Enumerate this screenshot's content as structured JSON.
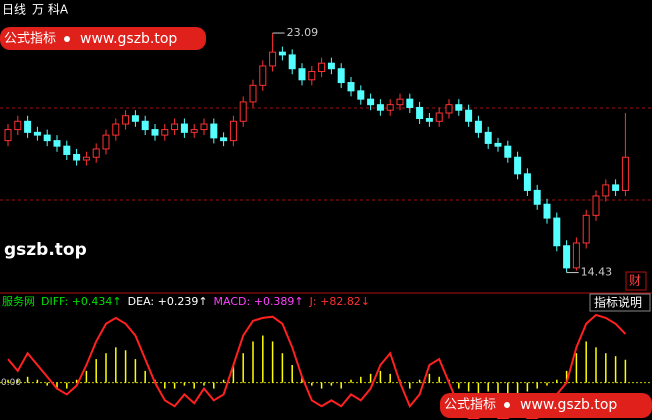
{
  "header": {
    "period": "日线",
    "stock": "万 科A"
  },
  "watermark": {
    "badge": "公式指标",
    "url": "www.gszb.top",
    "site": "gszb.top"
  },
  "button": "指标说明",
  "finance_tab": "财",
  "chart_data": [
    {
      "type": "candlestick",
      "ylim": [
        13.8,
        23.2
      ],
      "up_color": "#ff3232",
      "down_color": "#54ffff",
      "open": [
        19.2,
        19.6,
        19.9,
        19.5,
        19.4,
        19.2,
        19.0,
        18.7,
        18.5,
        18.6,
        18.9,
        19.4,
        19.8,
        20.1,
        19.9,
        19.6,
        19.4,
        19.6,
        19.8,
        19.5,
        19.6,
        19.8,
        19.3,
        19.2,
        19.9,
        20.6,
        21.2,
        21.9,
        22.4,
        22.3,
        21.8,
        21.4,
        21.7,
        22.0,
        21.8,
        21.3,
        21.0,
        20.7,
        20.5,
        20.3,
        20.5,
        20.7,
        20.4,
        20.0,
        19.9,
        20.2,
        20.5,
        20.3,
        19.9,
        19.5,
        19.1,
        19.0,
        18.6,
        18.0,
        17.4,
        16.9,
        16.4,
        15.4,
        14.6,
        15.5,
        16.5,
        17.2,
        17.6,
        17.4
      ],
      "high": [
        19.8,
        20.1,
        20.1,
        19.7,
        19.6,
        19.4,
        19.2,
        18.9,
        18.8,
        19.1,
        19.6,
        20.0,
        20.3,
        20.3,
        20.1,
        19.8,
        19.8,
        20.0,
        20.0,
        19.8,
        20.0,
        20.0,
        19.5,
        20.1,
        20.8,
        21.4,
        22.1,
        23.09,
        22.6,
        22.5,
        22.0,
        21.9,
        22.2,
        22.2,
        22.0,
        21.5,
        21.2,
        20.9,
        20.7,
        20.7,
        20.9,
        20.9,
        20.6,
        20.2,
        20.4,
        20.7,
        20.7,
        20.5,
        20.1,
        19.7,
        19.3,
        19.2,
        18.8,
        18.2,
        17.6,
        17.1,
        16.6,
        15.6,
        15.7,
        16.7,
        17.4,
        17.8,
        17.8,
        20.2
      ],
      "low": [
        19.0,
        19.4,
        19.3,
        19.2,
        19.0,
        18.8,
        18.5,
        18.3,
        18.3,
        18.4,
        18.7,
        19.2,
        19.6,
        19.7,
        19.4,
        19.2,
        19.2,
        19.4,
        19.3,
        19.3,
        19.4,
        19.1,
        19.0,
        19.0,
        19.7,
        20.4,
        21.0,
        21.7,
        22.1,
        21.6,
        21.2,
        21.2,
        21.5,
        21.6,
        21.1,
        20.8,
        20.5,
        20.3,
        20.1,
        20.1,
        20.3,
        20.2,
        19.8,
        19.7,
        19.7,
        20.0,
        20.1,
        19.7,
        19.3,
        18.9,
        18.8,
        18.4,
        17.8,
        17.2,
        16.7,
        16.2,
        15.2,
        14.43,
        14.5,
        15.3,
        16.3,
        17.0,
        17.2,
        17.2
      ],
      "close": [
        19.6,
        19.9,
        19.5,
        19.4,
        19.2,
        19.0,
        18.7,
        18.5,
        18.6,
        18.9,
        19.4,
        19.8,
        20.1,
        19.9,
        19.6,
        19.4,
        19.6,
        19.8,
        19.5,
        19.6,
        19.8,
        19.3,
        19.2,
        19.9,
        20.6,
        21.2,
        21.9,
        22.4,
        22.3,
        21.8,
        21.4,
        21.7,
        22.0,
        21.8,
        21.3,
        21.0,
        20.7,
        20.5,
        20.3,
        20.5,
        20.7,
        20.4,
        20.0,
        19.9,
        20.2,
        20.5,
        20.3,
        19.9,
        19.5,
        19.1,
        19.0,
        18.6,
        18.0,
        17.4,
        16.9,
        16.4,
        15.4,
        14.6,
        15.5,
        16.5,
        17.2,
        17.6,
        17.4,
        18.6
      ]
    },
    {
      "type": "line",
      "labels": [
        "服务网",
        "DIFF: +0.434↑",
        "DEA: +0.239↑",
        "MACD: +0.389↑",
        "J: +82.82↓"
      ],
      "label_colors": [
        "#00e000",
        "#00e000",
        "#ffffff",
        "#ff40ff",
        "#ff3030"
      ],
      "ylim": [
        -60,
        120
      ],
      "yticks": [
        {
          "value": 0,
          "label": "0.00"
        }
      ],
      "y2lim": [
        -0.6,
        1.2
      ],
      "j": {
        "color": "#ff2020",
        "values": [
          40,
          20,
          50,
          30,
          10,
          -10,
          -20,
          -5,
          30,
          70,
          100,
          110,
          100,
          80,
          40,
          0,
          -30,
          -40,
          -20,
          -35,
          -10,
          -30,
          -20,
          30,
          80,
          105,
          110,
          112,
          100,
          60,
          10,
          -30,
          -40,
          -30,
          -40,
          -20,
          -30,
          -10,
          30,
          50,
          0,
          -40,
          -20,
          30,
          40,
          0,
          -40,
          -60,
          -60,
          -40,
          -60,
          -60,
          -50,
          -60,
          -60,
          -40,
          -20,
          0,
          60,
          100,
          115,
          110,
          100,
          82.82
        ]
      },
      "macd": {
        "color": "#ffff00",
        "axis": "y2",
        "values": [
          0.05,
          0.05,
          0.1,
          0.05,
          -0.05,
          -0.1,
          -0.1,
          0.05,
          0.2,
          0.4,
          0.5,
          0.6,
          0.55,
          0.4,
          0.2,
          0.05,
          -0.1,
          -0.1,
          -0.05,
          -0.1,
          -0.05,
          -0.1,
          0.05,
          0.3,
          0.5,
          0.7,
          0.8,
          0.7,
          0.5,
          0.3,
          0.1,
          -0.05,
          -0.1,
          -0.05,
          -0.1,
          0.05,
          0.1,
          0.15,
          0.2,
          0.15,
          0.05,
          -0.1,
          0.05,
          0.15,
          0.1,
          0.05,
          -0.1,
          -0.15,
          -0.2,
          -0.15,
          -0.2,
          -0.25,
          -0.2,
          -0.15,
          -0.1,
          -0.05,
          0.05,
          0.2,
          0.5,
          0.7,
          0.6,
          0.5,
          0.45,
          0.389
        ]
      }
    }
  ]
}
